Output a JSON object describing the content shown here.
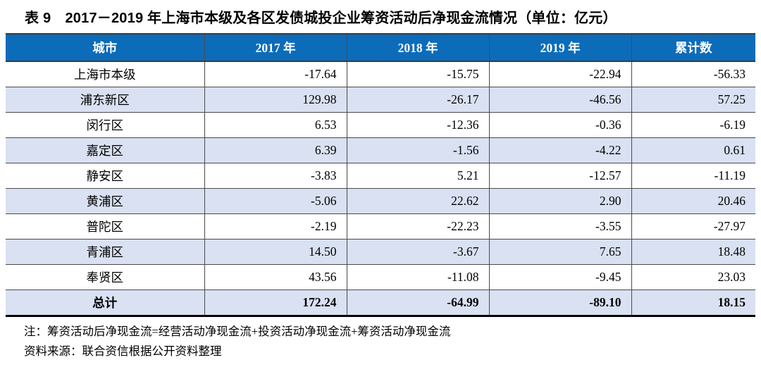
{
  "title": "表 9　2017－2019 年上海市本级及各区发债城投企业筹资活动后净现金流情况（单位：亿元）",
  "table": {
    "columns": [
      "城市",
      "2017 年",
      "2018 年",
      "2019 年",
      "累计数"
    ],
    "rows": [
      {
        "city": "上海市本级",
        "y2017": "-17.64",
        "y2018": "-15.75",
        "y2019": "-22.94",
        "total": "-56.33"
      },
      {
        "city": "浦东新区",
        "y2017": "129.98",
        "y2018": "-26.17",
        "y2019": "-46.56",
        "total": "57.25"
      },
      {
        "city": "闵行区",
        "y2017": "6.53",
        "y2018": "-12.36",
        "y2019": "-0.36",
        "total": "-6.19"
      },
      {
        "city": "嘉定区",
        "y2017": "6.39",
        "y2018": "-1.56",
        "y2019": "-4.22",
        "total": "0.61"
      },
      {
        "city": "静安区",
        "y2017": "-3.83",
        "y2018": "5.21",
        "y2019": "-12.57",
        "total": "-11.19"
      },
      {
        "city": "黄浦区",
        "y2017": "-5.06",
        "y2018": "22.62",
        "y2019": "2.90",
        "total": "20.46"
      },
      {
        "city": "普陀区",
        "y2017": "-2.19",
        "y2018": "-22.23",
        "y2019": "-3.55",
        "total": "-27.97"
      },
      {
        "city": "青浦区",
        "y2017": "14.50",
        "y2018": "-3.67",
        "y2019": "7.65",
        "total": "18.48"
      },
      {
        "city": "奉贤区",
        "y2017": "43.56",
        "y2018": "-11.08",
        "y2019": "-9.45",
        "total": "23.03"
      }
    ],
    "total_row": {
      "city": "总计",
      "y2017": "172.24",
      "y2018": "-64.99",
      "y2019": "-89.10",
      "total": "18.15"
    }
  },
  "notes": {
    "note": "注：筹资活动后净现金流=经营活动净现金流+投资活动净现金流+筹资活动净现金流",
    "source": "资料来源：联合资信根据公开资料整理"
  },
  "colors": {
    "header_bg": "#0c6cba",
    "header_text": "#ffffff",
    "stripe_bg": "#d9e1f2",
    "inner_border": "#4a4a4a",
    "bottom_border": "#000000"
  }
}
